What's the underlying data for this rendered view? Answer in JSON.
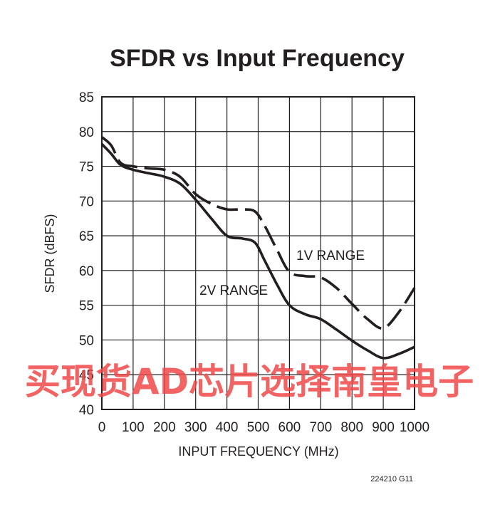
{
  "chart_data": {
    "type": "line",
    "title": "SFDR vs Input Frequency",
    "xlabel": "INPUT FREQUENCY (MHz)",
    "ylabel": "SFDR (dBFS)",
    "xlim": [
      0,
      1000
    ],
    "ylim": [
      40,
      85
    ],
    "xticks": [
      0,
      100,
      200,
      300,
      400,
      500,
      600,
      700,
      800,
      900,
      1000
    ],
    "yticks": [
      40,
      45,
      50,
      55,
      60,
      65,
      70,
      75,
      80,
      85
    ],
    "grid": true,
    "series": [
      {
        "name": "1V RANGE",
        "style": "dashed",
        "color": "#231f20",
        "x": [
          0,
          30,
          60,
          100,
          150,
          200,
          250,
          300,
          350,
          400,
          450,
          490,
          520,
          560,
          600,
          650,
          700,
          750,
          800,
          850,
          900,
          950,
          1000
        ],
        "y": [
          79.2,
          78.0,
          75.5,
          75.0,
          74.7,
          74.5,
          73.5,
          71.0,
          69.6,
          68.8,
          68.8,
          68.5,
          66.5,
          63.0,
          59.8,
          59.2,
          59.0,
          57.5,
          55.2,
          53.0,
          51.7,
          54.0,
          57.5
        ]
      },
      {
        "name": "2V RANGE",
        "style": "solid",
        "color": "#231f20",
        "x": [
          0,
          30,
          60,
          100,
          150,
          200,
          250,
          300,
          350,
          400,
          450,
          490,
          520,
          560,
          600,
          650,
          700,
          750,
          800,
          850,
          900,
          950,
          1000
        ],
        "y": [
          78.2,
          76.8,
          75.2,
          74.5,
          74.0,
          73.5,
          72.5,
          70.2,
          67.5,
          65.0,
          64.6,
          64.0,
          61.5,
          58.0,
          55.0,
          53.7,
          53.0,
          51.5,
          49.9,
          48.5,
          47.4,
          48.0,
          49.0
        ]
      }
    ],
    "annotations": [
      "1V RANGE",
      "2V RANGE"
    ]
  },
  "figure_id": "224210 G11",
  "watermark": "买现货AD芯片选择南皇电子"
}
